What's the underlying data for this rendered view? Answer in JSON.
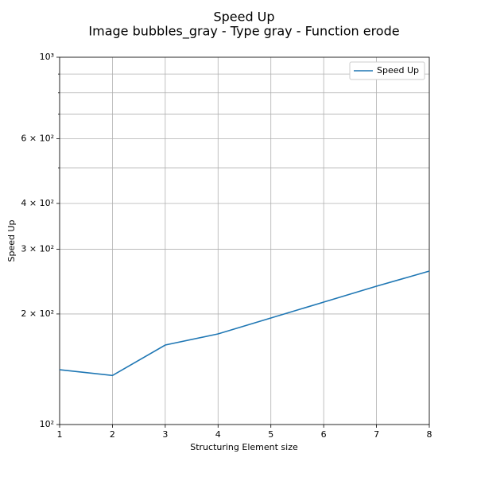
{
  "chart_data": {
    "type": "line",
    "title": "Speed Up",
    "subtitle": "Image bubbles_gray - Type gray - Function erode",
    "x_label": "Structuring Element size",
    "y_label": "Speed Up",
    "x": [
      1,
      2,
      3,
      4,
      5,
      6,
      7,
      8
    ],
    "series": [
      {
        "name": "Speed Up",
        "color": "#1f77b4",
        "values": [
          141,
          136,
          164.6,
          176.5,
          195,
          215.4,
          238,
          261.7
        ]
      }
    ],
    "xlim": [
      1,
      8
    ],
    "xticks": [
      1,
      2,
      3,
      4,
      5,
      6,
      7,
      8
    ],
    "ylim": [
      100,
      1000
    ],
    "y_log": true,
    "yticks": [
      {
        "value": 100,
        "label": "10²"
      },
      {
        "value": 200,
        "label": "2 × 10²"
      },
      {
        "value": 300,
        "label": "3 × 10²"
      },
      {
        "value": 400,
        "label": "4 × 10²"
      },
      {
        "value": 600,
        "label": "6 × 10²"
      },
      {
        "value": 1000,
        "label": "10³"
      }
    ],
    "yminor": [
      500,
      700,
      800,
      900
    ],
    "grid": true,
    "legend": "upper-right"
  }
}
